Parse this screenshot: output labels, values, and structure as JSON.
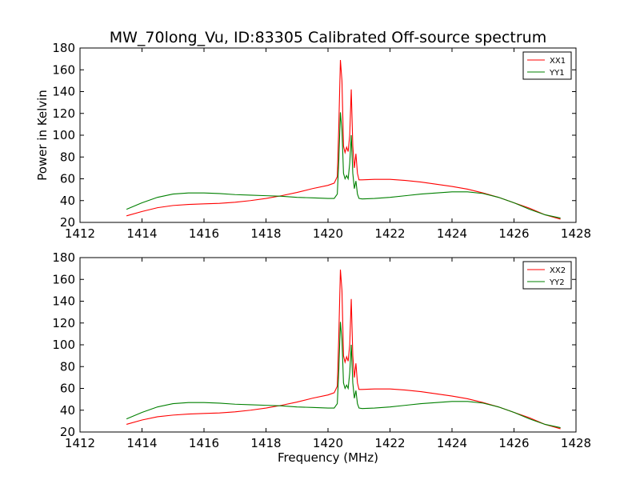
{
  "title": "MW_70long_Vu, ID:83305 Calibrated Off-source spectrum",
  "chart_data": [
    {
      "type": "line",
      "xlabel": "",
      "ylabel": "Power in Kelvin",
      "xlim": [
        1412,
        1428
      ],
      "ylim": [
        20,
        180
      ],
      "xticks": [
        "1412",
        "1414",
        "1416",
        "1418",
        "1420",
        "1422",
        "1424",
        "1426",
        "1428"
      ],
      "yticks": [
        "20",
        "40",
        "60",
        "80",
        "100",
        "120",
        "140",
        "160",
        "180"
      ],
      "legend_position": "top-right",
      "series": [
        {
          "name": "XX1",
          "color": "#ff0000",
          "x": [
            1413.5,
            1414,
            1414.5,
            1415,
            1415.5,
            1416,
            1416.5,
            1417,
            1417.5,
            1418,
            1418.5,
            1419,
            1419.5,
            1420,
            1420.2,
            1420.3,
            1420.35,
            1420.4,
            1420.45,
            1420.5,
            1420.55,
            1420.6,
            1420.65,
            1420.7,
            1420.75,
            1420.8,
            1420.85,
            1420.9,
            1420.95,
            1421,
            1421.1,
            1421.5,
            1422,
            1422.5,
            1423,
            1423.5,
            1424,
            1424.5,
            1425,
            1425.5,
            1426,
            1426.5,
            1427,
            1427.5
          ],
          "y": [
            26,
            30,
            33.5,
            35.5,
            36.5,
            37,
            37.5,
            38.5,
            40,
            42,
            44.5,
            47.5,
            51,
            54,
            56,
            62,
            110,
            169,
            150,
            90,
            84,
            89,
            85,
            100,
            142,
            90,
            70,
            83,
            65,
            59,
            59,
            59.5,
            59.5,
            58.5,
            57,
            55,
            53,
            50.5,
            47,
            43,
            38,
            33,
            27,
            23
          ]
        },
        {
          "name": "YY1",
          "color": "#008000",
          "x": [
            1413.5,
            1414,
            1414.5,
            1415,
            1415.5,
            1416,
            1416.5,
            1417,
            1417.5,
            1418,
            1418.5,
            1419,
            1419.5,
            1420,
            1420.2,
            1420.3,
            1420.35,
            1420.4,
            1420.45,
            1420.5,
            1420.55,
            1420.6,
            1420.65,
            1420.7,
            1420.75,
            1420.8,
            1420.85,
            1420.9,
            1420.95,
            1421,
            1421.1,
            1421.5,
            1422,
            1422.5,
            1423,
            1423.5,
            1424,
            1424.5,
            1425,
            1425.5,
            1426,
            1426.5,
            1427,
            1427.5
          ],
          "y": [
            32,
            38,
            43,
            46,
            47,
            47,
            46.5,
            45.5,
            45,
            44.5,
            44,
            43,
            42.5,
            42,
            42,
            46,
            78,
            121,
            105,
            65,
            60,
            63,
            60,
            74,
            100,
            65,
            51,
            58,
            46,
            42,
            41.5,
            42,
            43,
            44.5,
            46,
            47,
            48,
            48,
            46.5,
            43,
            38,
            32,
            27,
            24
          ]
        }
      ]
    },
    {
      "type": "line",
      "xlabel": "Frequency (MHz)",
      "ylabel": "",
      "xlim": [
        1412,
        1428
      ],
      "ylim": [
        20,
        180
      ],
      "xticks": [
        "1412",
        "1414",
        "1416",
        "1418",
        "1420",
        "1422",
        "1424",
        "1426",
        "1428"
      ],
      "yticks": [
        "20",
        "40",
        "60",
        "80",
        "100",
        "120",
        "140",
        "160",
        "180"
      ],
      "legend_position": "top-right",
      "series": [
        {
          "name": "XX2",
          "color": "#ff0000",
          "x": [
            1413.5,
            1414,
            1414.5,
            1415,
            1415.5,
            1416,
            1416.5,
            1417,
            1417.5,
            1418,
            1418.5,
            1419,
            1419.5,
            1420,
            1420.2,
            1420.3,
            1420.35,
            1420.4,
            1420.45,
            1420.5,
            1420.55,
            1420.6,
            1420.65,
            1420.7,
            1420.75,
            1420.8,
            1420.85,
            1420.9,
            1420.95,
            1421,
            1421.1,
            1421.5,
            1422,
            1422.5,
            1423,
            1423.5,
            1424,
            1424.5,
            1425,
            1425.5,
            1426,
            1426.5,
            1427,
            1427.5
          ],
          "y": [
            27,
            31,
            34,
            35.5,
            36.5,
            37,
            37.5,
            38.5,
            40,
            42,
            44.5,
            47.5,
            51,
            54,
            56,
            62,
            110,
            169,
            150,
            90,
            84,
            89,
            85,
            100,
            142,
            90,
            70,
            83,
            65,
            59,
            59,
            59.5,
            59.5,
            58.5,
            57,
            55,
            53,
            50.5,
            47,
            43,
            38,
            33,
            27,
            23
          ]
        },
        {
          "name": "YY2",
          "color": "#008000",
          "x": [
            1413.5,
            1414,
            1414.5,
            1415,
            1415.5,
            1416,
            1416.5,
            1417,
            1417.5,
            1418,
            1418.5,
            1419,
            1419.5,
            1420,
            1420.2,
            1420.3,
            1420.35,
            1420.4,
            1420.45,
            1420.5,
            1420.55,
            1420.6,
            1420.65,
            1420.7,
            1420.75,
            1420.8,
            1420.85,
            1420.9,
            1420.95,
            1421,
            1421.1,
            1421.5,
            1422,
            1422.5,
            1423,
            1423.5,
            1424,
            1424.5,
            1425,
            1425.5,
            1426,
            1426.5,
            1427,
            1427.5
          ],
          "y": [
            32,
            38,
            43,
            46,
            47,
            47,
            46.5,
            45.5,
            45,
            44.5,
            44,
            43,
            42.5,
            42,
            42,
            46,
            78,
            121,
            105,
            65,
            60,
            63,
            60,
            74,
            100,
            65,
            51,
            58,
            46,
            42,
            41.5,
            42,
            43,
            44.5,
            46,
            47,
            48,
            48,
            46.5,
            43,
            38,
            32,
            27,
            24
          ]
        }
      ]
    }
  ]
}
